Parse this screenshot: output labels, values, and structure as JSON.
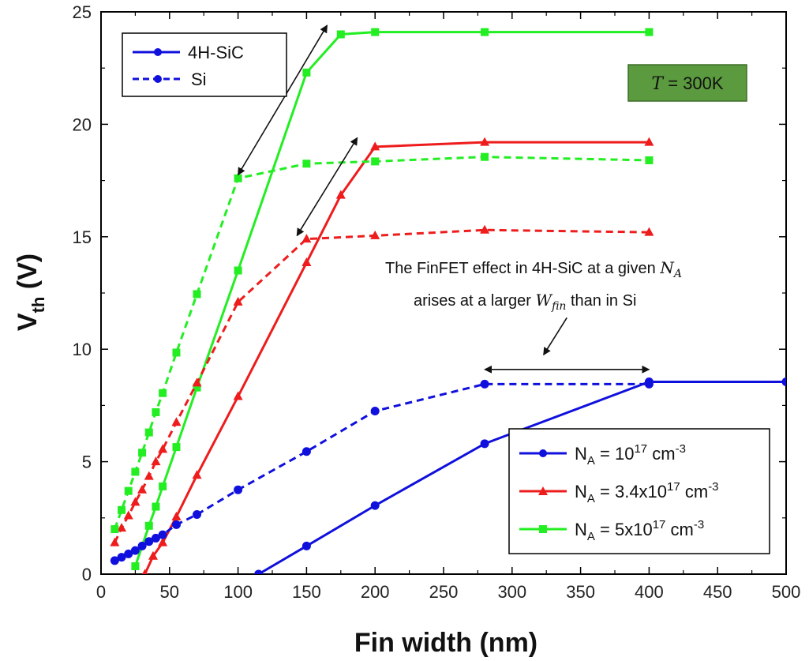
{
  "chart_data": {
    "type": "line",
    "title": "",
    "xlabel": "Fin width (nm)",
    "ylabel": {
      "main": "V",
      "sub": "th",
      "suffix": " (V)"
    },
    "xlim": [
      0,
      500
    ],
    "ylim": [
      0,
      25
    ],
    "xticks": [
      0,
      50,
      100,
      150,
      200,
      250,
      300,
      350,
      400,
      450,
      500
    ],
    "yticks": [
      0,
      5,
      10,
      15,
      20,
      25
    ],
    "grid": false,
    "colors": {
      "blue": "#1010dd",
      "red": "#ee1c1c",
      "green": "#22ee22",
      "box": "#5b9a3e",
      "axis": "#000000"
    },
    "series": [
      {
        "material": "4H-SiC",
        "doping": "1e17",
        "color": "blue",
        "marker": "circle",
        "dash": false,
        "x": [
          115,
          150,
          200,
          280,
          400,
          500
        ],
        "y": [
          0,
          1.25,
          3.05,
          5.8,
          8.55,
          8.55
        ]
      },
      {
        "material": "4H-SiC",
        "doping": "3.4e17",
        "color": "red",
        "marker": "triangle",
        "dash": false,
        "x": [
          32,
          38,
          45,
          55,
          70,
          100,
          150,
          175,
          200,
          280,
          400
        ],
        "y": [
          0,
          0.8,
          1.4,
          2.55,
          4.4,
          7.9,
          13.85,
          16.85,
          19.0,
          19.2,
          19.2
        ]
      },
      {
        "material": "4H-SiC",
        "doping": "5e17",
        "color": "green",
        "marker": "square",
        "dash": false,
        "x": [
          25,
          35,
          40,
          45,
          55,
          70,
          100,
          150,
          175,
          200,
          280,
          400
        ],
        "y": [
          0.35,
          2.15,
          3.0,
          3.9,
          5.65,
          8.3,
          13.5,
          22.3,
          24.0,
          24.1,
          24.1,
          24.1
        ]
      },
      {
        "material": "Si",
        "doping": "1e17",
        "color": "blue",
        "marker": "circle",
        "dash": true,
        "x": [
          10,
          15,
          20,
          25,
          30,
          35,
          40,
          45,
          55,
          70,
          100,
          150,
          200,
          280,
          400
        ],
        "y": [
          0.6,
          0.75,
          0.9,
          1.05,
          1.25,
          1.45,
          1.6,
          1.75,
          2.2,
          2.65,
          3.75,
          5.45,
          7.25,
          8.45,
          8.45
        ]
      },
      {
        "material": "Si",
        "doping": "3.4e17",
        "color": "red",
        "marker": "triangle",
        "dash": true,
        "x": [
          10,
          15,
          20,
          25,
          30,
          35,
          40,
          45,
          55,
          70,
          100,
          150,
          200,
          280,
          400
        ],
        "y": [
          1.4,
          2.05,
          2.6,
          3.2,
          3.75,
          4.35,
          5.0,
          5.55,
          6.75,
          8.5,
          12.1,
          14.9,
          15.05,
          15.3,
          15.2
        ]
      },
      {
        "material": "Si",
        "doping": "5e17",
        "color": "green",
        "marker": "square",
        "dash": true,
        "x": [
          10,
          15,
          20,
          25,
          30,
          35,
          40,
          45,
          55,
          70,
          100,
          150,
          200,
          280,
          400
        ],
        "y": [
          2.0,
          2.85,
          3.7,
          4.55,
          5.4,
          6.3,
          7.2,
          8.05,
          9.85,
          12.45,
          17.6,
          18.25,
          18.35,
          18.55,
          18.4
        ]
      }
    ],
    "legend_material": {
      "position": "top-left",
      "entries": [
        {
          "label": "4H-SiC",
          "dash": false
        },
        {
          "label": "Si",
          "dash": true
        }
      ]
    },
    "legend_doping": {
      "position": "bottom-right",
      "entries": [
        {
          "prefix": "N",
          "sub": "A",
          "value": " = 10",
          "sup": "17",
          "unit": " cm",
          "unit_sup": "-3",
          "color": "blue",
          "marker": "circle"
        },
        {
          "prefix": "N",
          "sub": "A",
          "value": " = 3.4x10",
          "sup": "17",
          "unit": " cm",
          "unit_sup": "-3",
          "color": "red",
          "marker": "triangle"
        },
        {
          "prefix": "N",
          "sub": "A",
          "value": " = 5x10",
          "sup": "17",
          "unit": " cm",
          "unit_sup": "-3",
          "color": "green",
          "marker": "square"
        }
      ]
    },
    "temperature_box": {
      "symbol": "T",
      "eq": " = ",
      "value": "300K"
    },
    "annotation": {
      "line1": {
        "text": "The FinFET effect in 4H-SiC at a given ",
        "var": "N",
        "var_sub": "A"
      },
      "line2": {
        "text_before": "arises at a larger ",
        "var": "W",
        "var_sub": "fin",
        "text_after": " than in Si"
      },
      "arrows": [
        {
          "from": [
            100,
            17.75
          ],
          "to": [
            165,
            24.4
          ],
          "double": true
        },
        {
          "from": [
            143,
            15.05
          ],
          "to": [
            187,
            19.4
          ],
          "double": true
        },
        {
          "from": [
            280,
            9.1
          ],
          "to": [
            400,
            9.1
          ],
          "double": true
        },
        {
          "from": [
            340,
            11.4
          ],
          "to": [
            323,
            9.75
          ],
          "double": false
        }
      ]
    }
  }
}
